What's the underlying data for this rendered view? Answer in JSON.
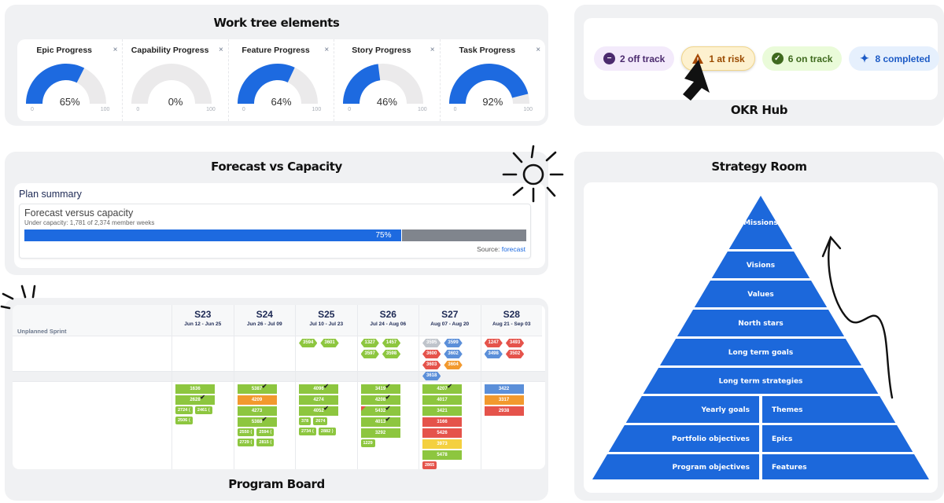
{
  "work_tree": {
    "title": "Work tree elements",
    "gauges": [
      {
        "label": "Epic Progress",
        "value": 65,
        "display": "65%",
        "min": "0",
        "max": "100"
      },
      {
        "label": "Capability Progress",
        "value": 0,
        "display": "0%",
        "min": "0",
        "max": "100"
      },
      {
        "label": "Feature Progress",
        "value": 64,
        "display": "64%",
        "min": "0",
        "max": "100"
      },
      {
        "label": "Story Progress",
        "value": 46,
        "display": "46%",
        "min": "0",
        "max": "100"
      },
      {
        "label": "Task Progress",
        "value": 92,
        "display": "92%",
        "min": "0",
        "max": "100"
      }
    ],
    "close_glyph": "×",
    "colors": {
      "fill": "#1d6ae0",
      "track": "#ebeaeb"
    }
  },
  "okr_hub": {
    "title": "OKR Hub",
    "chips": [
      {
        "label": "2 off track",
        "icon": "minus-circle-icon",
        "glyph": "−",
        "bg": "#f3eafb",
        "fg": "#4b2a6e",
        "icon_bg": "#4b2a6e"
      },
      {
        "label": "1 at risk",
        "icon": "warning-triangle-icon",
        "glyph": "!",
        "bg": "#fdf1cf",
        "fg": "#9a4a00",
        "icon_bg": "#a54800"
      },
      {
        "label": "6 on track",
        "icon": "check-circle-icon",
        "glyph": "✓",
        "bg": "#eafbd9",
        "fg": "#3f6a1e",
        "icon_bg": "#3f6a1e"
      },
      {
        "label": "8 completed",
        "icon": "sparkle-icon",
        "glyph": "✦",
        "bg": "#e6f0fd",
        "fg": "#1d5bc6",
        "icon_bg": "transparent"
      }
    ]
  },
  "forecast": {
    "title": "Forecast vs Capacity",
    "plan_summary": "Plan summary",
    "heading": "Forecast versus capacity",
    "subheading": "Under capacity: 1,781 of 2,374 member weeks",
    "percent": 75,
    "percent_label": "75%",
    "source_label": "Source:",
    "source_link": "forecast"
  },
  "program_board": {
    "title": "Program Board",
    "unplanned_label": "Unplanned Sprint",
    "sprints": [
      {
        "name": "S23",
        "dates": "Jun 12 - Jun 25",
        "hexes": [],
        "cards": [
          {
            "id": "1636",
            "c": "g"
          },
          {
            "id": "2628",
            "c": "g",
            "check": true
          }
        ],
        "minis": [
          "2724 ⟨",
          "2461 ⟨",
          "2506 ⟨"
        ]
      },
      {
        "name": "S24",
        "dates": "Jun 26 - Jul 09",
        "hexes": [],
        "cards": [
          {
            "id": "5387",
            "c": "g",
            "check": true
          },
          {
            "id": "4209",
            "c": "o"
          },
          {
            "id": "4273",
            "c": "g"
          },
          {
            "id": "5388",
            "c": "g",
            "check": true
          }
        ],
        "minis": [
          "2550 ⟨",
          "2594 ⟨",
          "2729 ⟨",
          "2815 ⟨"
        ]
      },
      {
        "name": "S25",
        "dates": "Jul 10 - Jul 23",
        "hexes": [
          {
            "id": "3594",
            "c": "g"
          },
          {
            "id": "3601",
            "c": "g"
          }
        ],
        "cards": [
          {
            "id": "4096",
            "c": "g",
            "check": true
          },
          {
            "id": "4274",
            "c": "g"
          },
          {
            "id": "4052",
            "c": "g",
            "check": true
          }
        ],
        "minis": [
          "378",
          "2674",
          "2734 ⟨",
          "2882 ⟩"
        ]
      },
      {
        "name": "S26",
        "dates": "Jul 24 - Aug 06",
        "hexes": [
          {
            "id": "1327",
            "c": "g"
          },
          {
            "id": "1457",
            "c": "g"
          },
          {
            "id": "3597",
            "c": "g"
          },
          {
            "id": "3598",
            "c": "g"
          }
        ],
        "cards": [
          {
            "id": "3419",
            "c": "g",
            "check": true
          },
          {
            "id": "4208",
            "c": "g",
            "check": true
          },
          {
            "id": "5432",
            "c": "g",
            "check": true,
            "flag": true
          },
          {
            "id": "4013",
            "c": "g",
            "check": true
          },
          {
            "id": "3292",
            "c": "g"
          }
        ],
        "minis": [
          "1229"
        ]
      },
      {
        "name": "S27",
        "dates": "Aug 07 - Aug 20",
        "hexes": [
          {
            "id": "3595",
            "c": "gr"
          },
          {
            "id": "3599",
            "c": "b"
          },
          {
            "id": "3600",
            "c": "r"
          },
          {
            "id": "3602",
            "c": "b"
          },
          {
            "id": "3603",
            "c": "r"
          },
          {
            "id": "3604",
            "c": "o"
          },
          {
            "id": "3618",
            "c": "b"
          }
        ],
        "cards": [
          {
            "id": "4207",
            "c": "g",
            "check": true
          },
          {
            "id": "4017",
            "c": "g"
          },
          {
            "id": "3421",
            "c": "g"
          },
          {
            "id": "3166",
            "c": "r"
          },
          {
            "id": "5426",
            "c": "r"
          },
          {
            "id": "3973",
            "c": "y"
          },
          {
            "id": "5478",
            "c": "g"
          }
        ],
        "minis_red": [
          "2865"
        ]
      },
      {
        "name": "S28",
        "dates": "Aug 21 - Sep 03",
        "hexes": [
          {
            "id": "1247",
            "c": "r"
          },
          {
            "id": "3493",
            "c": "r"
          },
          {
            "id": "3498",
            "c": "b"
          },
          {
            "id": "3502",
            "c": "r"
          }
        ],
        "cards": [
          {
            "id": "3422",
            "c": "b"
          },
          {
            "id": "3317",
            "c": "o"
          },
          {
            "id": "2938",
            "c": "r"
          }
        ],
        "minis": []
      }
    ]
  },
  "strategy_room": {
    "title": "Strategy Room",
    "layers": [
      {
        "left": "Missions"
      },
      {
        "left": "Visions"
      },
      {
        "left": "Values"
      },
      {
        "left": "North stars"
      },
      {
        "left": "Long term goals"
      },
      {
        "left": "Long term strategies"
      },
      {
        "left": "Yearly goals",
        "right": "Themes"
      },
      {
        "left": "Portfolio objectives",
        "right": "Epics"
      },
      {
        "left": "Program objectives",
        "right": "Features"
      }
    ],
    "color": "#1c68db"
  }
}
